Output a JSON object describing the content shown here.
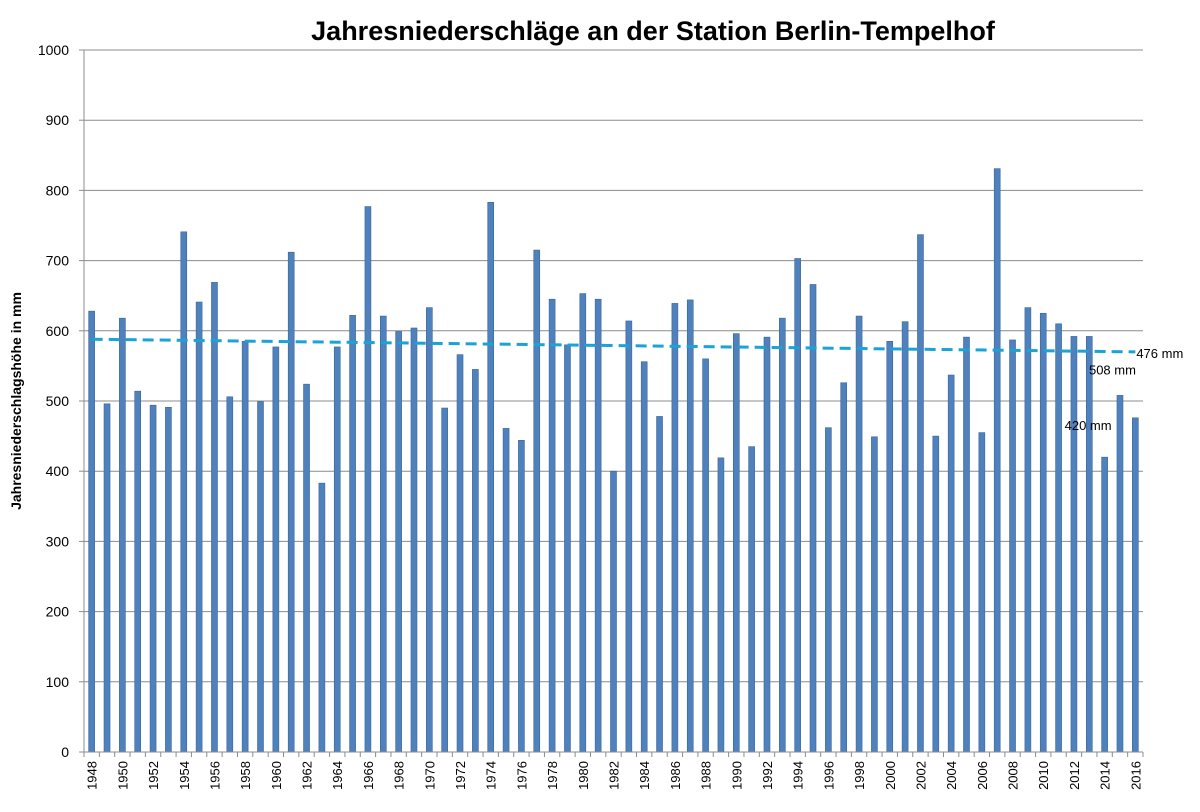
{
  "chart_data": {
    "type": "bar",
    "title": "Jahresniederschläge an der Station Berlin-Tempelhof",
    "xlabel": "",
    "ylabel": "Jahresniederschlagshöhe in mm",
    "ylim": [
      0,
      1000
    ],
    "yticks": [
      0,
      100,
      200,
      300,
      400,
      500,
      600,
      700,
      800,
      900,
      1000
    ],
    "grid": true,
    "legend": "none",
    "bar_color": "#4f81bd",
    "trend_color": "#1aa3d6",
    "x": [
      1948,
      1949,
      1950,
      1951,
      1952,
      1953,
      1954,
      1955,
      1956,
      1957,
      1958,
      1959,
      1960,
      1961,
      1962,
      1963,
      1964,
      1965,
      1966,
      1967,
      1968,
      1969,
      1970,
      1971,
      1972,
      1973,
      1974,
      1975,
      1976,
      1977,
      1978,
      1979,
      1980,
      1981,
      1982,
      1983,
      1984,
      1985,
      1986,
      1987,
      1988,
      1989,
      1990,
      1991,
      1992,
      1993,
      1994,
      1995,
      1996,
      1997,
      1998,
      1999,
      2000,
      2001,
      2002,
      2003,
      2004,
      2005,
      2006,
      2007,
      2008,
      2009,
      2010,
      2011,
      2012,
      2013,
      2014,
      2015,
      2016
    ],
    "xtick_labels": [
      "1948",
      "1950",
      "1952",
      "1954",
      "1956",
      "1958",
      "1960",
      "1962",
      "1964",
      "1966",
      "1968",
      "1970",
      "1972",
      "1974",
      "1976",
      "1978",
      "1980",
      "1982",
      "1984",
      "1986",
      "1988",
      "1990",
      "1992",
      "1994",
      "1996",
      "1998",
      "2000",
      "2002",
      "2004",
      "2006",
      "2008",
      "2010",
      "2012",
      "2014",
      "2016"
    ],
    "values": [
      628,
      496,
      618,
      514,
      494,
      491,
      741,
      641,
      669,
      506,
      585,
      499,
      577,
      712,
      524,
      383,
      577,
      622,
      777,
      621,
      599,
      604,
      633,
      490,
      566,
      545,
      783,
      461,
      444,
      715,
      645,
      580,
      653,
      645,
      400,
      614,
      556,
      478,
      639,
      644,
      560,
      419,
      596,
      435,
      591,
      618,
      703,
      666,
      462,
      526,
      621,
      449,
      585,
      613,
      737,
      450,
      537,
      591,
      455,
      831,
      587,
      633,
      625,
      610,
      592,
      592,
      420,
      508,
      476
    ],
    "trend": {
      "type": "linear",
      "start": {
        "x": 1948,
        "y": 588
      },
      "end": {
        "x": 2016,
        "y": 570
      }
    },
    "annotations": [
      {
        "x": 2014,
        "y": 420,
        "text": "420 mm"
      },
      {
        "x": 2015,
        "y": 508,
        "text": "508 mm"
      },
      {
        "x": 2016,
        "y": 476,
        "text": "476 mm"
      }
    ]
  }
}
